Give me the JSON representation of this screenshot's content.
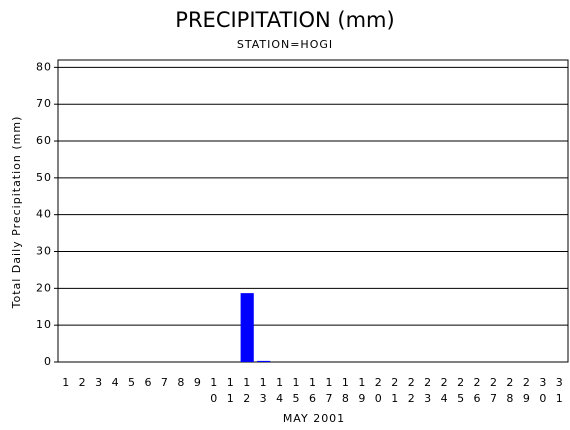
{
  "chart_data": {
    "type": "bar",
    "title": "PRECIPITATION (mm)",
    "subtitle": "STATION=HOGI",
    "x_label": "MAY 2001",
    "y_label": "Total Daily Precipitation (mm)",
    "categories": [
      "1",
      "2",
      "3",
      "4",
      "5",
      "6",
      "7",
      "8",
      "9",
      "10",
      "11",
      "12",
      "13",
      "14",
      "15",
      "16",
      "17",
      "18",
      "19",
      "20",
      "21",
      "22",
      "23",
      "24",
      "25",
      "26",
      "27",
      "28",
      "29",
      "30",
      "31"
    ],
    "values": [
      0,
      0,
      0,
      0,
      0,
      0,
      0,
      0,
      0,
      0,
      0,
      18.7,
      0.3,
      0,
      0,
      0,
      0,
      0,
      0,
      0,
      0,
      0,
      0,
      0,
      0,
      0,
      0,
      0,
      0,
      0,
      0
    ],
    "color": "#0000ff",
    "ylim": [
      0,
      82
    ],
    "yticks": [
      0,
      10,
      20,
      30,
      40,
      50,
      60,
      70,
      80
    ],
    "grid": true
  }
}
